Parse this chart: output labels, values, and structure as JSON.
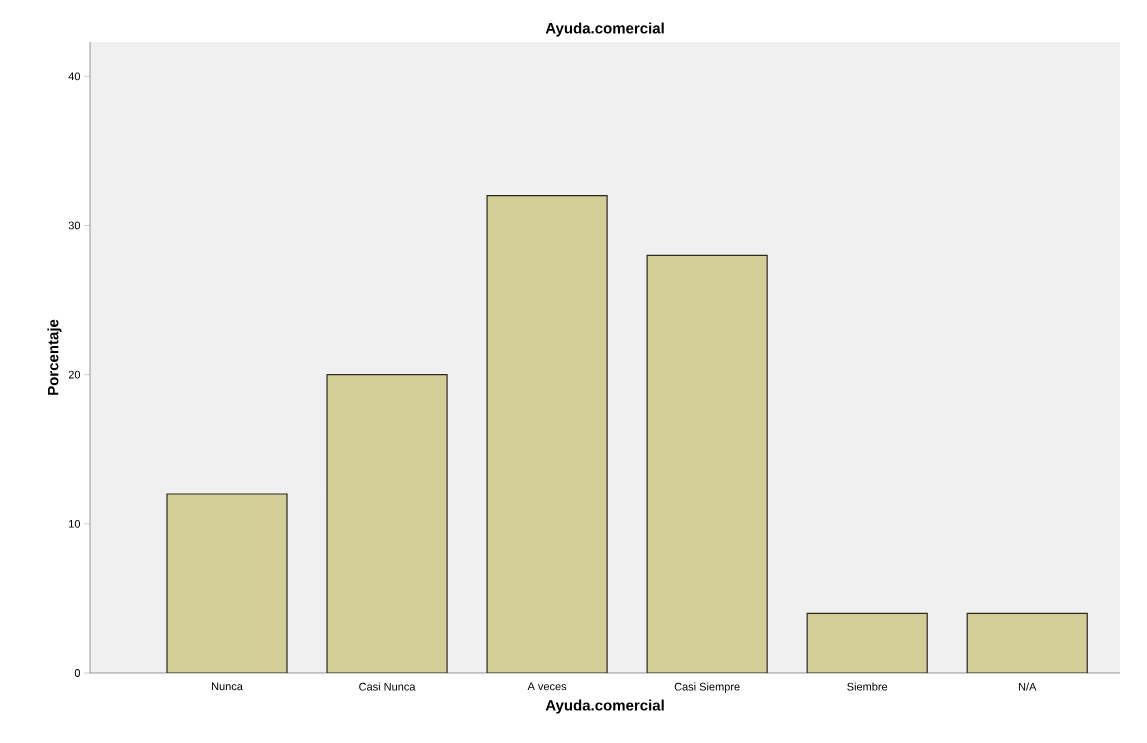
{
  "chart_data": {
    "type": "bar",
    "title": "Ayuda.comercial",
    "xlabel": "Ayuda.comercial",
    "ylabel": "Porcentaje",
    "categories": [
      "Nunca",
      "Casi Nunca",
      "A veces",
      "Casi Siempre",
      "Siembre",
      "N/A"
    ],
    "values": [
      12,
      20,
      32,
      28,
      4,
      4
    ],
    "color": "#d3ce97",
    "ylim": [
      0,
      42.3
    ],
    "yticks": [
      0,
      10,
      20,
      30,
      40
    ],
    "grid": false
  }
}
